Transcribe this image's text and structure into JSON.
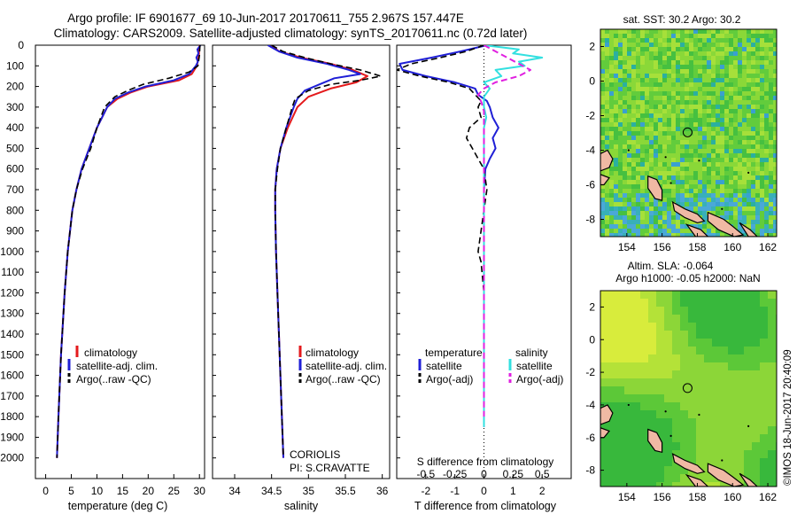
{
  "title": {
    "line1": "Argo profile: IF 6901677_69 10-Jun-2017 20170611_755 2.967S 157.447E",
    "line2": "Climatology: CARS2009. Satellite-adjusted climatology: synTS_20170611.nc (0.72d later)"
  },
  "side_stamp": "©IMOS 18-Jun-2017 20:40:09",
  "colors": {
    "climatology": "#e41a1c",
    "satellite": "#1f1fd6",
    "argo": "#000000",
    "sal_satellite": "#33e0e0",
    "sal_argo": "#e020e0",
    "land": "#f0b9a4"
  },
  "chart_data": [
    {
      "id": "temperature",
      "type": "line",
      "xlabel": "temperature (deg C)",
      "ylabel": "",
      "xlim": [
        -2,
        31
      ],
      "ylim": [
        2100,
        0
      ],
      "x_ticks": [
        "0",
        "5",
        "10",
        "15",
        "20",
        "25",
        "30"
      ],
      "y_ticks": [
        "0",
        "100",
        "200",
        "300",
        "400",
        "500",
        "600",
        "700",
        "800",
        "900",
        "1000",
        "1100",
        "1200",
        "1300",
        "1400",
        "1500",
        "1600",
        "1700",
        "1800",
        "1900",
        "2000"
      ],
      "legend": [
        {
          "label": "climatology"
        },
        {
          "label": "satellite-adj. clim."
        },
        {
          "label": "Argo(..raw -QC)"
        }
      ],
      "series": [
        {
          "name": "climatology",
          "depth": [
            0,
            50,
            100,
            140,
            170,
            200,
            230,
            260,
            300,
            400,
            500,
            600,
            700,
            800,
            1000,
            1200,
            1500,
            1800,
            2000
          ],
          "values": [
            30.0,
            29.9,
            29.5,
            28.5,
            26,
            20,
            16.5,
            14,
            12,
            10,
            8.5,
            7,
            6,
            5.2,
            4.3,
            3.7,
            3.0,
            2.5,
            2.2
          ]
        },
        {
          "name": "satellite",
          "depth": [
            0,
            20,
            40,
            60,
            80,
            100,
            140,
            170,
            200,
            230,
            260,
            300,
            400,
            500,
            600,
            700,
            800,
            1000,
            1200,
            1500,
            1800,
            2000
          ],
          "values": [
            30.2,
            29.6,
            29.8,
            29.4,
            29.7,
            29.3,
            28,
            25,
            19.5,
            16,
            13.5,
            12,
            10,
            8.5,
            7,
            6,
            5.2,
            4.3,
            3.7,
            3.0,
            2.5,
            2.2
          ]
        },
        {
          "name": "argo",
          "depth": [
            0,
            50,
            100,
            130,
            160,
            190,
            220,
            250,
            300,
            400,
            500,
            600,
            700,
            800,
            1000,
            1200,
            1500,
            1800,
            2000
          ],
          "values": [
            30.1,
            30.0,
            29.7,
            28,
            24,
            19,
            16,
            13.5,
            11.5,
            10,
            8.8,
            7.2,
            6,
            5.2,
            4.3,
            3.7,
            3.0,
            2.5,
            2.2
          ]
        }
      ]
    },
    {
      "id": "salinity",
      "type": "line",
      "xlabel": "salinity",
      "xlim": [
        33.7,
        36.1
      ],
      "ylim": [
        2100,
        0
      ],
      "x_ticks": [
        "34",
        "34.5",
        "35",
        "35.5",
        "36"
      ],
      "legend": [
        {
          "label": "climatology"
        },
        {
          "label": "satellite-adj. clim."
        },
        {
          "label": "Argo(..raw -QC)"
        }
      ],
      "annotation": {
        "line1": "CORIOLIS",
        "line2": "PI: S.CRAVATTE"
      },
      "series": [
        {
          "name": "climatology",
          "depth": [
            0,
            30,
            60,
            90,
            120,
            150,
            180,
            210,
            250,
            300,
            400,
            500,
            600,
            700,
            800,
            1000,
            1200,
            1500,
            1800,
            2000
          ],
          "values": [
            34.5,
            34.6,
            34.9,
            35.3,
            35.6,
            35.8,
            35.65,
            35.3,
            35.0,
            34.85,
            34.72,
            34.62,
            34.57,
            34.55,
            34.55,
            34.56,
            34.58,
            34.61,
            34.64,
            34.66
          ]
        },
        {
          "name": "satellite",
          "depth": [
            0,
            30,
            60,
            90,
            120,
            140,
            160,
            190,
            220,
            260,
            300,
            400,
            500,
            600,
            700,
            800,
            1000,
            1200,
            1500,
            1800,
            2000
          ],
          "values": [
            34.45,
            34.6,
            34.85,
            35.25,
            35.55,
            35.7,
            35.35,
            35.15,
            34.95,
            34.85,
            34.8,
            34.7,
            34.62,
            34.57,
            34.55,
            34.55,
            34.56,
            34.58,
            34.61,
            34.64,
            34.66
          ]
        },
        {
          "name": "argo",
          "depth": [
            0,
            30,
            60,
            90,
            120,
            150,
            170,
            190,
            220,
            260,
            300,
            400,
            500,
            600,
            700,
            800,
            1000,
            1200,
            1500,
            1800,
            2000
          ],
          "values": [
            34.5,
            34.65,
            34.95,
            35.3,
            35.7,
            35.98,
            35.7,
            35.3,
            35.0,
            34.82,
            34.78,
            34.7,
            34.62,
            34.58,
            34.55,
            34.55,
            34.56,
            34.58,
            34.61,
            34.64,
            34.66
          ]
        }
      ]
    },
    {
      "id": "difference",
      "type": "line",
      "xlabel": "T difference from climatology",
      "xlabel_top": "S difference from climatology",
      "xlim": [
        -3,
        3
      ],
      "ylim": [
        2100,
        0
      ],
      "x_ticks": [
        "-2",
        "-1",
        "0",
        "1",
        "2"
      ],
      "x_ticks_top": [
        "-0.5",
        "-0.25",
        "0",
        "0.25",
        "0.5"
      ],
      "legend_temperature": {
        "title": "temperature",
        "items": [
          {
            "label": "satellite"
          },
          {
            "label": "Argo(-adj)"
          }
        ]
      },
      "legend_salinity": {
        "title": "salinity",
        "items": [
          {
            "label": "satellite"
          },
          {
            "label": "Argo(-adj)"
          }
        ]
      },
      "series": [
        {
          "name": "T satellite",
          "depth": [
            0,
            30,
            60,
            90,
            120,
            150,
            180,
            210,
            240,
            270,
            300,
            350,
            400,
            450,
            500,
            550,
            600,
            700,
            800,
            1000,
            1200,
            1500,
            1800,
            1850
          ],
          "values": [
            0.1,
            -0.8,
            -1.8,
            -2.9,
            -2.8,
            -2.0,
            -1.0,
            -0.3,
            -0.2,
            0.1,
            0.2,
            0.3,
            0.5,
            0.3,
            0.4,
            0.2,
            0.05,
            0.0,
            0.0,
            0.0,
            0.0,
            0.0,
            0.0,
            0.0
          ]
        },
        {
          "name": "T argo",
          "depth": [
            0,
            30,
            60,
            90,
            120,
            150,
            180,
            210,
            240,
            270,
            300,
            350,
            400,
            450,
            500,
            550,
            600,
            700,
            800,
            1000,
            1050,
            1200,
            1500,
            1800
          ],
          "values": [
            0.0,
            -0.6,
            -1.5,
            -2.5,
            -3.0,
            -2.2,
            -1.2,
            -0.5,
            -0.3,
            -0.1,
            -0.2,
            -0.1,
            -0.5,
            -0.6,
            -0.4,
            -0.2,
            0.0,
            0.1,
            0.0,
            -0.2,
            -0.1,
            0.0,
            0.0,
            0.0
          ]
        },
        {
          "name": "S satellite",
          "depth": [
            0,
            20,
            40,
            60,
            80,
            100,
            120,
            150,
            180,
            210,
            250,
            300,
            350,
            400,
            500,
            600,
            800,
            1000,
            1500,
            1850
          ],
          "values": [
            0.0,
            0.3,
            0.25,
            0.5,
            0.3,
            0.35,
            0.1,
            0.15,
            0.0,
            0.05,
            0.0,
            0.0,
            0.02,
            0.0,
            0.0,
            0.0,
            0.0,
            0.0,
            0.0,
            0.0
          ]
        },
        {
          "name": "S argo",
          "depth": [
            0,
            30,
            60,
            90,
            120,
            150,
            180,
            210,
            240,
            280,
            320,
            360,
            400,
            500,
            600,
            800,
            1000,
            1500,
            1800
          ],
          "values": [
            0.0,
            0.1,
            0.2,
            0.3,
            0.4,
            0.3,
            0.1,
            0.0,
            -0.05,
            -0.02,
            0.0,
            0.0,
            0.0,
            0.0,
            0.0,
            0.0,
            0.0,
            0.0,
            0.0
          ]
        }
      ]
    },
    {
      "id": "sst_map",
      "type": "heatmap",
      "title": "sat. SST: 30.2 Argo: 30.2",
      "xlim": [
        152.5,
        162.5
      ],
      "ylim": [
        -9,
        3
      ],
      "x_ticks": [
        "154",
        "156",
        "158",
        "160",
        "162"
      ],
      "y_ticks": [
        "2",
        "0",
        "-2",
        "-4",
        "-6",
        "-8"
      ],
      "marker": {
        "lon": 157.447,
        "lat": -2.967
      }
    },
    {
      "id": "sla_map",
      "type": "heatmap",
      "title_line1": "Altim. SLA: -0.064",
      "title_line2": "Argo h1000: -0.05 h2000: NaN",
      "xlim": [
        152.5,
        162.5
      ],
      "ylim": [
        -9,
        3
      ],
      "x_ticks": [
        "154",
        "156",
        "158",
        "160",
        "162"
      ],
      "y_ticks": [
        "2",
        "0",
        "-2",
        "-4",
        "-6",
        "-8"
      ],
      "marker": {
        "lon": 157.447,
        "lat": -2.967
      }
    }
  ]
}
